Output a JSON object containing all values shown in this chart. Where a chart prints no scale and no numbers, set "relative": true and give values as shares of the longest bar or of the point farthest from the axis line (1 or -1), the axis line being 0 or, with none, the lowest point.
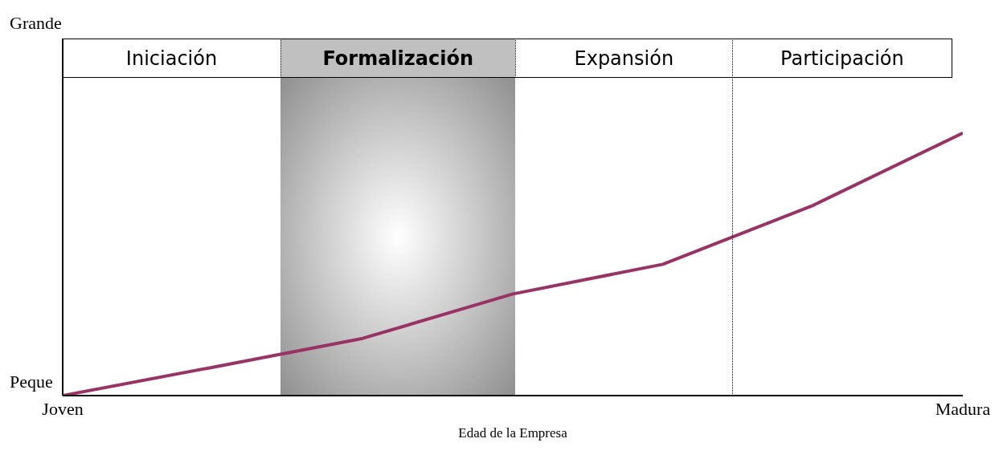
{
  "chart_data": {
    "type": "line",
    "relative": true,
    "xlabel": "Edad de la Empresa",
    "categories": [
      "Joven",
      null,
      null,
      null,
      null,
      null,
      "Madura"
    ],
    "series": [
      {
        "color": "#993366",
        "values": [
          0,
          0.108,
          0.218,
          0.387,
          0.5,
          0.724,
          1
        ]
      }
    ],
    "annotations": [
      "Grande",
      "Peque",
      "Iniciación",
      "Formalización",
      "Expansión",
      "Participación"
    ]
  }
}
